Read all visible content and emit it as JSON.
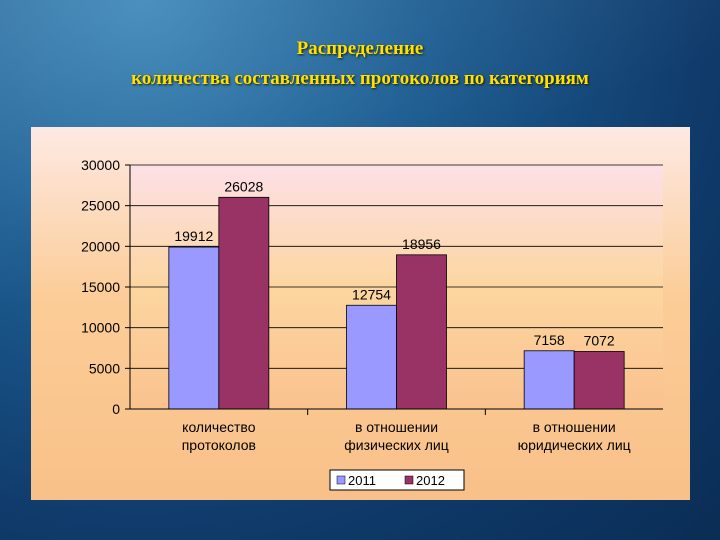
{
  "slide": {
    "title_line1": "Распределение",
    "title_line2": "количества составленных протоколов по категориям"
  },
  "colors": {
    "title": "#ffe000",
    "series_2011": "#9999ff",
    "series_2012": "#993366"
  },
  "chart_data": {
    "type": "bar",
    "categories": [
      [
        "количество",
        "протоколов"
      ],
      [
        "в отношении",
        "физических лиц"
      ],
      [
        "в отношении",
        "юридических лиц"
      ]
    ],
    "series": [
      {
        "name": "2011",
        "values": [
          19912,
          12754,
          7158
        ]
      },
      {
        "name": "2012",
        "values": [
          26028,
          18956,
          7072
        ]
      }
    ],
    "ylim": [
      0,
      30000
    ],
    "yticks": [
      0,
      5000,
      10000,
      15000,
      20000,
      25000,
      30000
    ],
    "data_labels": true,
    "grid": true,
    "legend_position": "bottom"
  }
}
